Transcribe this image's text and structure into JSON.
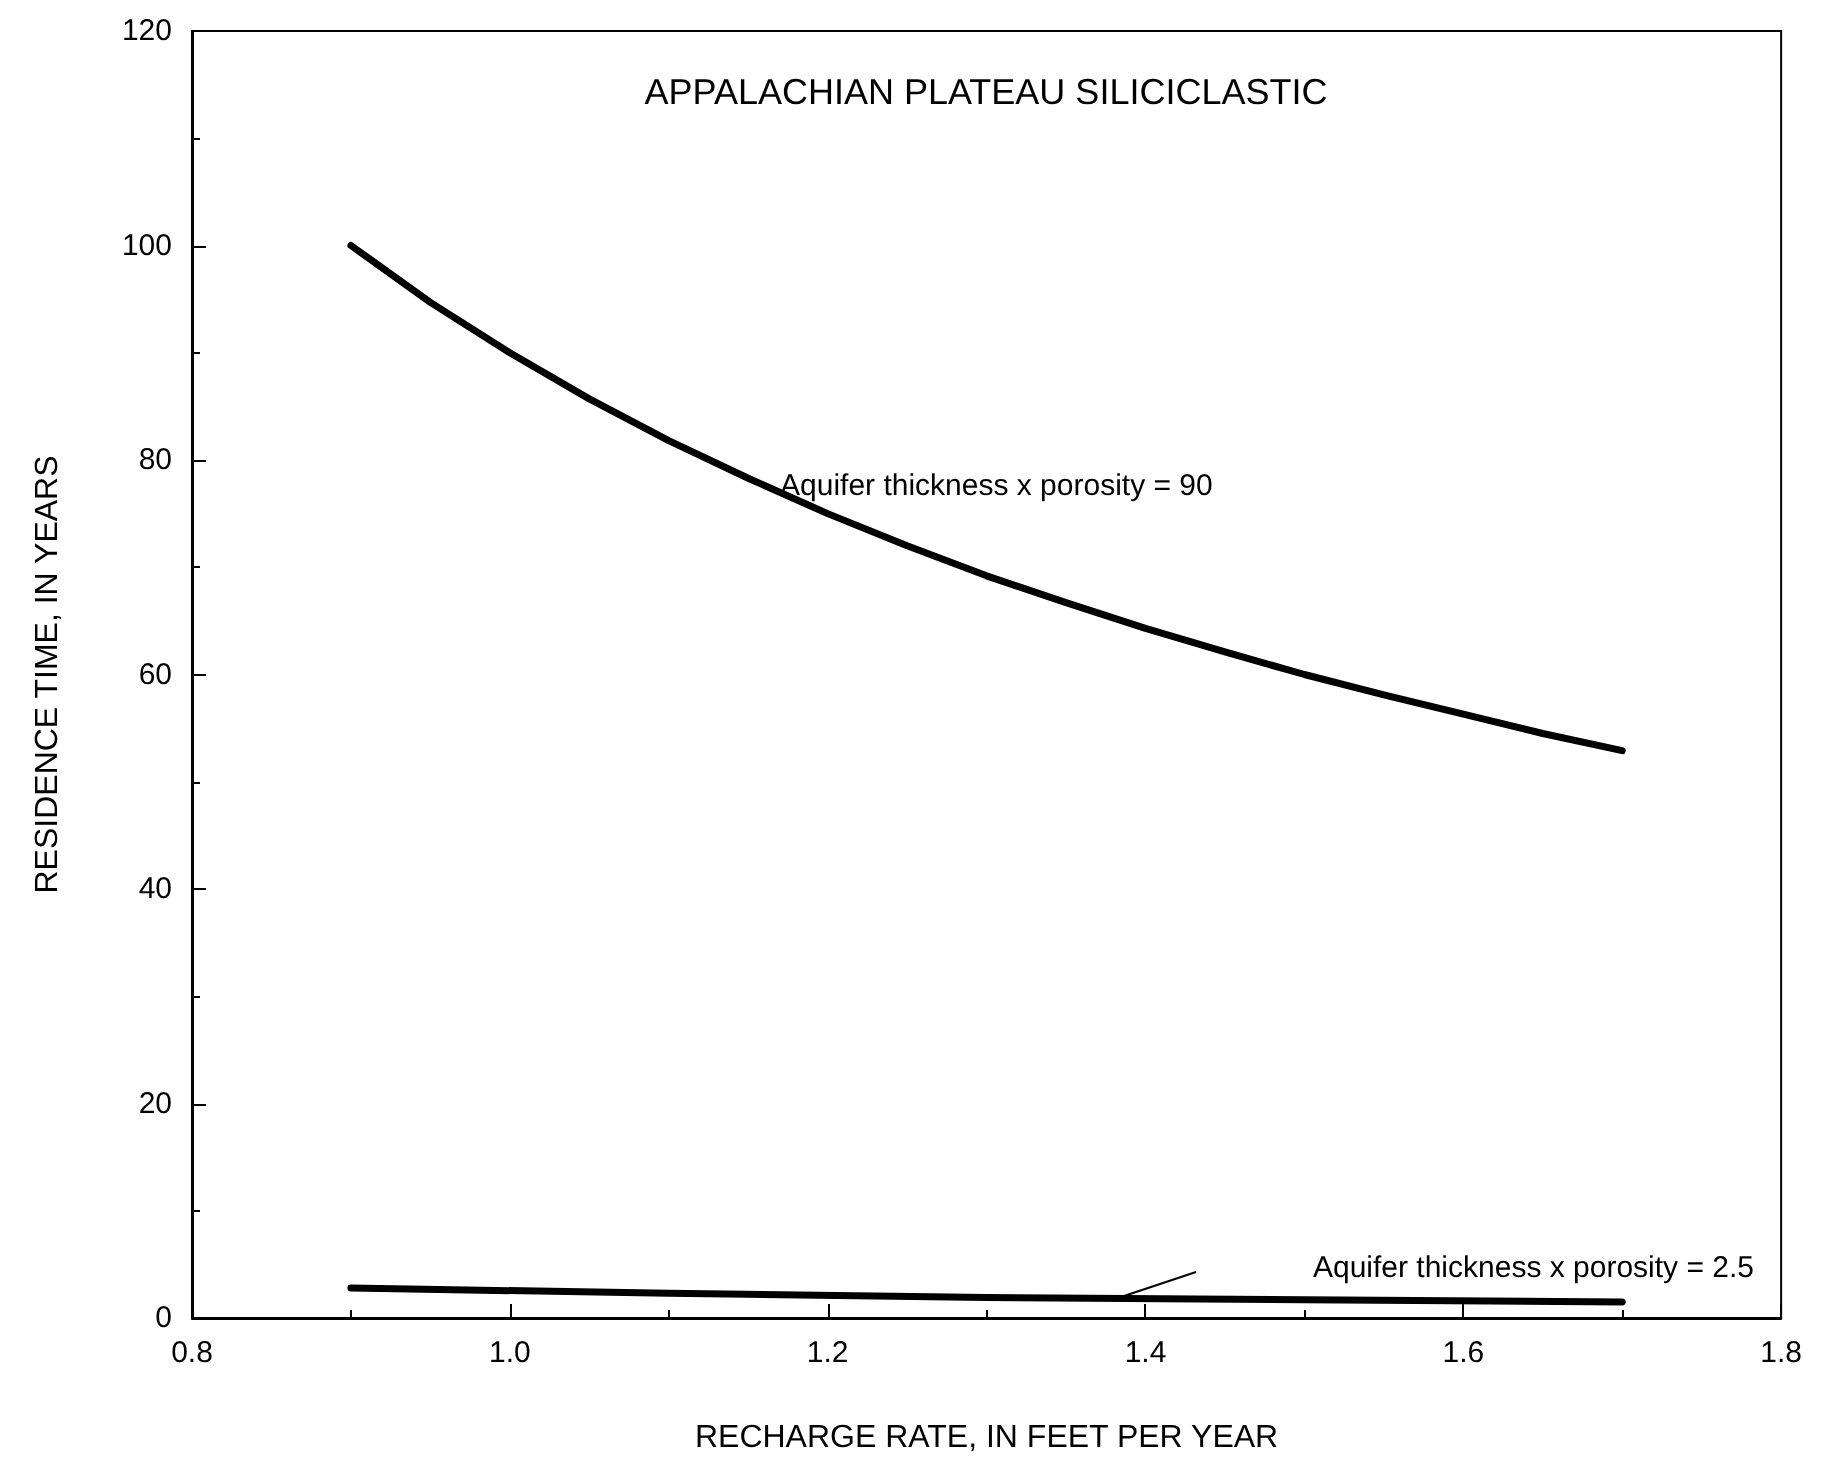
{
  "chart_data": {
    "type": "line",
    "title": "APPALACHIAN PLATEAU SILICICLASTIC",
    "xlabel": "RECHARGE RATE, IN FEET PER YEAR",
    "ylabel": "RESIDENCE TIME, IN YEARS",
    "xlim": [
      0.8,
      1.8
    ],
    "xticks": [
      {
        "value": 0.8,
        "label": "0.8"
      },
      {
        "value": 1,
        "label": "1.0"
      },
      {
        "value": 1.2,
        "label": "1.2"
      },
      {
        "value": 1.4,
        "label": "1.4"
      },
      {
        "value": 1.6,
        "label": "1.6"
      },
      {
        "value": 1.8,
        "label": "1.8"
      }
    ],
    "ylim": [
      0,
      120
    ],
    "yticks": [
      0,
      20,
      40,
      60,
      80,
      100,
      120
    ],
    "grid": false,
    "marker": "none",
    "line_style": "solid",
    "series": [
      {
        "color": "#000000",
        "x": [
          0.9,
          0.95,
          1.0,
          1.05,
          1.1,
          1.15,
          1.2,
          1.25,
          1.3,
          1.35,
          1.4,
          1.45,
          1.5,
          1.55,
          1.6,
          1.65,
          1.7
        ],
        "values": [
          100,
          94.7,
          90,
          85.7,
          81.8,
          78.3,
          75,
          72,
          69.2,
          66.7,
          64.3,
          62.1,
          60,
          58.1,
          56.3,
          54.5,
          52.9
        ]
      },
      {
        "color": "#000000",
        "x": [
          0.9,
          1.1,
          1.3,
          1.5,
          1.7
        ],
        "values": [
          2.8,
          2.3,
          1.9,
          1.7,
          1.5
        ]
      }
    ],
    "annotations": [
      "Aquifer thickness x porosity = 90",
      "Aquifer thickness x porosity = 2.5"
    ]
  }
}
